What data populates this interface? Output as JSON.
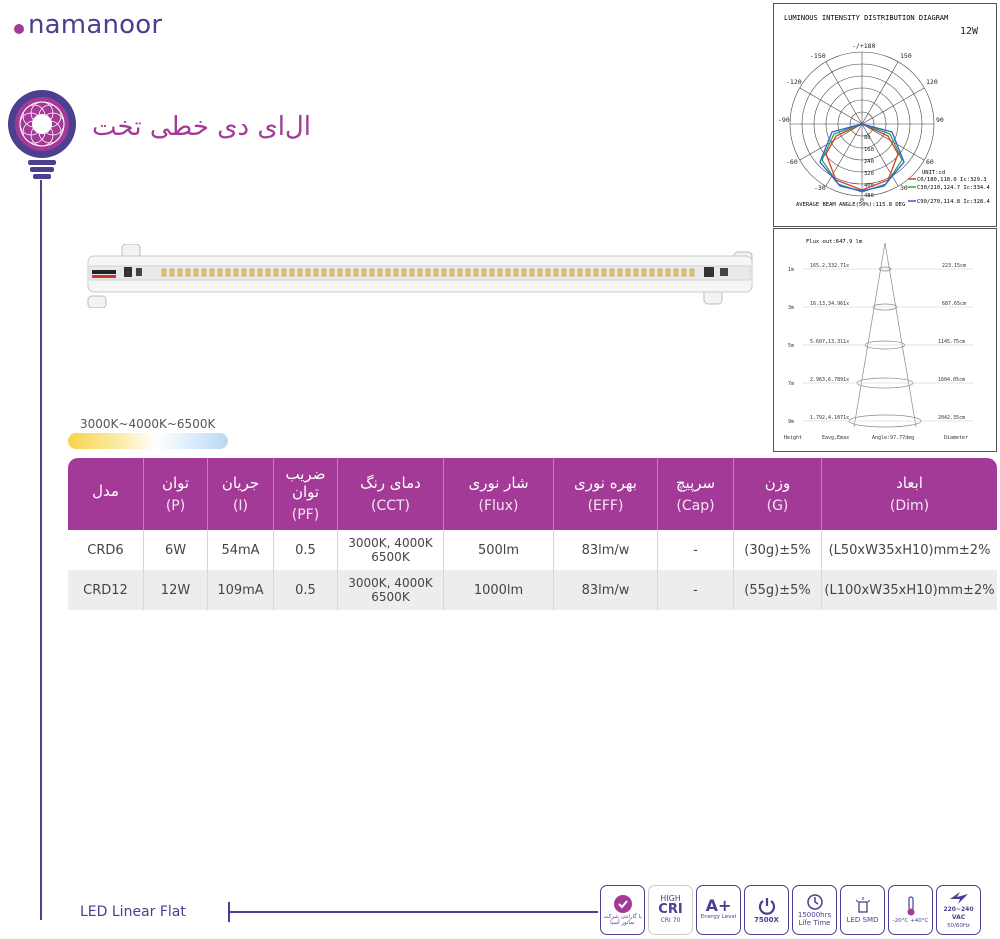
{
  "brand": {
    "name": "namanoor"
  },
  "product": {
    "title_fa": "ال‌ای دی خطی تخت",
    "footer_label": "LED Linear Flat"
  },
  "diagram1": {
    "title": "LUMINOUS INTENSITY DISTRIBUTION DIAGRAM",
    "power": "12W",
    "angles": {
      "top": "-/+180",
      "a150n": "-150",
      "a150": "150",
      "a120n": "-120",
      "a120": "120",
      "a90n": "-90",
      "a90": "90",
      "a60n": "-60",
      "a60": "60",
      "a30n": "-30",
      "a30": "30",
      "c0": "0"
    },
    "rings": [
      "80",
      "160",
      "240",
      "320",
      "400",
      "480"
    ],
    "unit": "UNIT:cd",
    "legend": [
      "C0/180,118.0 Ic:329.3",
      "C30/210,124.7 Ic:334.4",
      "C90/270,114.8 Ic:328.4"
    ],
    "colors": [
      "#e03a3a",
      "#2aa84a",
      "#2b5fd9"
    ],
    "beam": "AVERAGE BEAM ANGLE(50%):115.8 DEG"
  },
  "diagram2": {
    "flux": "Flux out:647.9 lm",
    "rows": [
      {
        "h": "1m",
        "e": "165.2,332.71x",
        "d": "223.15cm"
      },
      {
        "h": "3m",
        "e": "16.13,34.961x",
        "d": "687.65cm"
      },
      {
        "h": "5m",
        "e": "5.607,13.311x",
        "d": "1145.75cm"
      },
      {
        "h": "7m",
        "e": "2.963,6.7891x",
        "d": "1604.05cm"
      },
      {
        "h": "9m",
        "e": "1.792,4.1071x",
        "d": "2042.35cm"
      }
    ],
    "footer": {
      "height": "Height",
      "eavg": "Eavg,Emax",
      "angle": "Angle:97.77deg",
      "diameter": "Diameter"
    }
  },
  "cct": {
    "label": "3000K~4000K~6500K"
  },
  "table": {
    "headers": [
      {
        "fa": "مدل",
        "en": ""
      },
      {
        "fa": "توان",
        "en": "(P)"
      },
      {
        "fa": "جریان",
        "en": "(I)"
      },
      {
        "fa": "ضریب توان",
        "en": "(PF)"
      },
      {
        "fa": "دمای رنگ",
        "en": "(CCT)"
      },
      {
        "fa": "شار نوری",
        "en": "(Flux)"
      },
      {
        "fa": "بهره نوری",
        "en": "(EFF)"
      },
      {
        "fa": "سرپیچ",
        "en": "(Cap)"
      },
      {
        "fa": "وزن",
        "en": "(G)"
      },
      {
        "fa": "ابعاد",
        "en": "(Dim)"
      }
    ],
    "rows": [
      {
        "model": "CRD6",
        "p": "6W",
        "i": "54mA",
        "pf": "0.5",
        "cct1": "3000K, 4000K",
        "cct2": "6500K",
        "flux": "500lm",
        "eff": "83lm/w",
        "cap": "-",
        "g": "(30g)±5%",
        "dim": "(L50xW35xH10)mm±2%"
      },
      {
        "model": "CRD12",
        "p": "12W",
        "i": "109mA",
        "pf": "0.5",
        "cct1": "3000K, 4000K",
        "cct2": "6500K",
        "flux": "1000lm",
        "eff": "83lm/w",
        "cap": "-",
        "g": "(55g)±5%",
        "dim": "(L100xW35xH10)mm±2%"
      }
    ]
  },
  "badges": {
    "b1": "با گارانتی شرکت نماتور آسیا",
    "b2a": "HIGH",
    "b2b": "CRI",
    "b2c": "CRI 70",
    "b3a": "A+",
    "b3b": "Energy Level",
    "b4": "7500X",
    "b5a": "15000hrs",
    "b5b": "Life Time",
    "b6": "LED SMD",
    "b7a": "+40°C",
    "b7b": "-20°C",
    "b8a": "220~240 VAC",
    "b8b": "50/60Hz"
  }
}
